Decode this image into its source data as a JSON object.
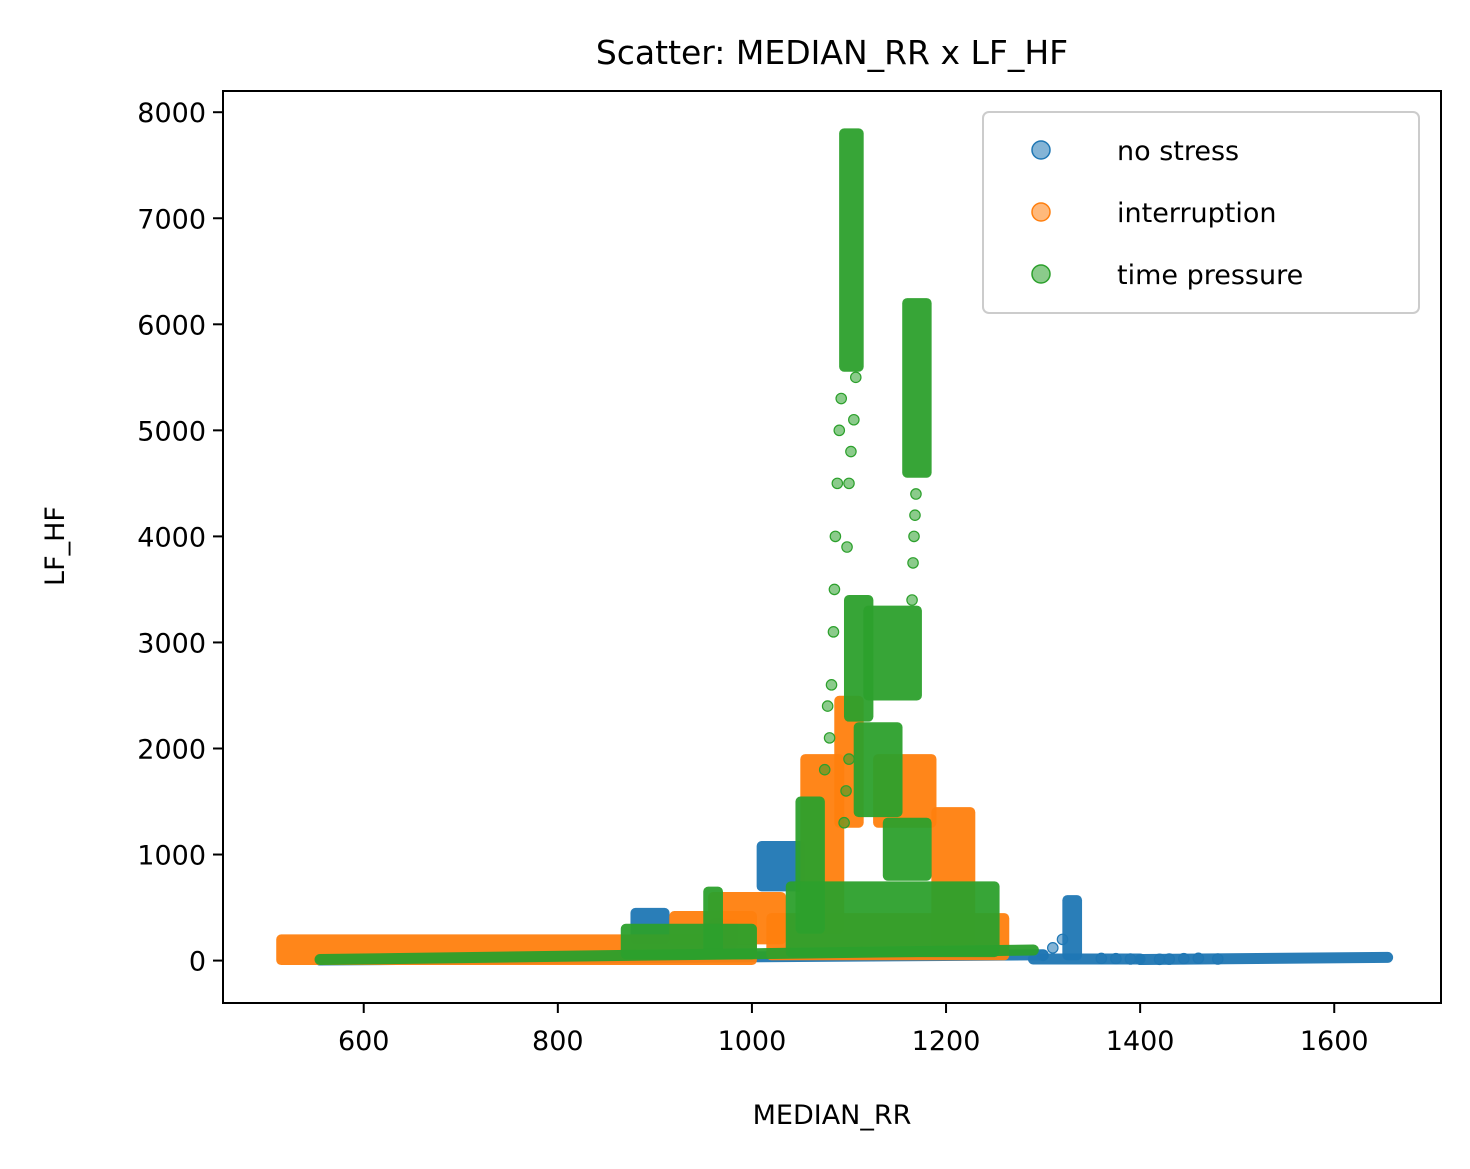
{
  "chart_data": {
    "type": "scatter",
    "title": "Scatter: MEDIAN_RR x LF_HF",
    "xlabel": "MEDIAN_RR",
    "ylabel": "LF_HF",
    "xlim": [
      455,
      1710
    ],
    "ylim": [
      -400,
      8200
    ],
    "xticks": [
      600,
      800,
      1000,
      1200,
      1400,
      1600
    ],
    "yticks": [
      0,
      1000,
      2000,
      3000,
      4000,
      5000,
      6000,
      7000,
      8000
    ],
    "xtick_labels": [
      "600",
      "800",
      "1000",
      "1200",
      "1400",
      "1600"
    ],
    "ytick_labels": [
      "0",
      "1000",
      "2000",
      "3000",
      "4000",
      "5000",
      "6000",
      "7000",
      "8000"
    ],
    "grid": false,
    "legend_position": "top-right",
    "series": [
      {
        "name": "no stress",
        "color": "#1f77b4",
        "segments": [
          {
            "x": [
              555,
              1300
            ],
            "y": [
              5,
              55
            ]
          },
          {
            "x": [
              1290,
              1400
            ],
            "y": [
              15,
              15
            ]
          },
          {
            "x": [
              1400,
              1655
            ],
            "y": [
              10,
              30
            ]
          },
          {
            "x": [
              1010,
              1050
            ],
            "y": [
              700,
              1080
            ]
          },
          {
            "x": [
              1325,
              1335
            ],
            "y": [
              50,
              570
            ]
          },
          {
            "x": [
              880,
              910
            ],
            "y": [
              200,
              450
            ]
          },
          {
            "x": [
              960,
              980
            ],
            "y": [
              150,
              350
            ]
          }
        ],
        "points": [
          {
            "x": 1300,
            "y": 50
          },
          {
            "x": 1310,
            "y": 120
          },
          {
            "x": 1320,
            "y": 200
          },
          {
            "x": 1360,
            "y": 20
          },
          {
            "x": 1375,
            "y": 18
          },
          {
            "x": 1390,
            "y": 15
          },
          {
            "x": 1420,
            "y": 12
          },
          {
            "x": 1430,
            "y": 14
          },
          {
            "x": 1445,
            "y": 18
          },
          {
            "x": 1460,
            "y": 22
          },
          {
            "x": 1480,
            "y": 15
          }
        ]
      },
      {
        "name": "interruption",
        "color": "#ff7f0e",
        "segments": [
          {
            "x": [
              515,
              1000
            ],
            "y": [
              5,
              200
            ]
          },
          {
            "x": [
              960,
              1030
            ],
            "y": [
              200,
              600
            ]
          },
          {
            "x": [
              1055,
              1090
            ],
            "y": [
              300,
              1900
            ]
          },
          {
            "x": [
              1090,
              1110
            ],
            "y": [
              1300,
              2450
            ]
          },
          {
            "x": [
              1130,
              1185
            ],
            "y": [
              1300,
              1900
            ]
          },
          {
            "x": [
              1190,
              1225
            ],
            "y": [
              100,
              1400
            ]
          },
          {
            "x": [
              1020,
              1260
            ],
            "y": [
              50,
              400
            ]
          },
          {
            "x": [
              920,
              1000
            ],
            "y": [
              200,
              420
            ]
          }
        ],
        "points": []
      },
      {
        "name": "time pressure",
        "color": "#2ca02c",
        "segments": [
          {
            "x": [
              555,
              1290
            ],
            "y": [
              10,
              100
            ]
          },
          {
            "x": [
              1095,
              1110
            ],
            "y": [
              5600,
              7800
            ]
          },
          {
            "x": [
              1160,
              1180
            ],
            "y": [
              4600,
              6200
            ]
          },
          {
            "x": [
              1100,
              1120
            ],
            "y": [
              2300,
              3400
            ]
          },
          {
            "x": [
              1120,
              1170
            ],
            "y": [
              2500,
              3300
            ]
          },
          {
            "x": [
              1050,
              1070
            ],
            "y": [
              300,
              1500
            ]
          },
          {
            "x": [
              1110,
              1150
            ],
            "y": [
              1400,
              2200
            ]
          },
          {
            "x": [
              1140,
              1180
            ],
            "y": [
              800,
              1300
            ]
          },
          {
            "x": [
              1040,
              1250
            ],
            "y": [
              80,
              700
            ]
          },
          {
            "x": [
              955,
              965
            ],
            "y": [
              100,
              650
            ]
          },
          {
            "x": [
              870,
              1000
            ],
            "y": [
              60,
              300
            ]
          }
        ],
        "points": [
          {
            "x": 1080,
            "y": 2100
          },
          {
            "x": 1082,
            "y": 2600
          },
          {
            "x": 1084,
            "y": 3100
          },
          {
            "x": 1085,
            "y": 3500
          },
          {
            "x": 1086,
            "y": 4000
          },
          {
            "x": 1088,
            "y": 4500
          },
          {
            "x": 1090,
            "y": 5000
          },
          {
            "x": 1092,
            "y": 5300
          },
          {
            "x": 1098,
            "y": 3900
          },
          {
            "x": 1100,
            "y": 4500
          },
          {
            "x": 1102,
            "y": 4800
          },
          {
            "x": 1105,
            "y": 5100
          },
          {
            "x": 1107,
            "y": 5500
          },
          {
            "x": 1075,
            "y": 1800
          },
          {
            "x": 1078,
            "y": 2400
          },
          {
            "x": 1165,
            "y": 3400
          },
          {
            "x": 1166,
            "y": 3750
          },
          {
            "x": 1167,
            "y": 4000
          },
          {
            "x": 1168,
            "y": 4200
          },
          {
            "x": 1169,
            "y": 4400
          },
          {
            "x": 1095,
            "y": 1300
          },
          {
            "x": 1097,
            "y": 1600
          },
          {
            "x": 1100,
            "y": 1900
          }
        ]
      }
    ]
  }
}
